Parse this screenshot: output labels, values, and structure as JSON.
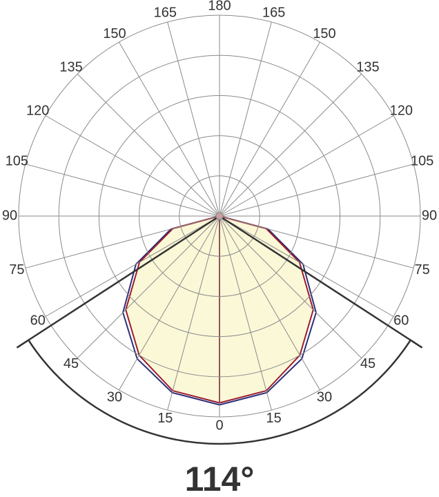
{
  "chart_data": {
    "type": "polar",
    "angle_ticks": [
      0,
      15,
      30,
      45,
      60,
      75,
      90,
      105,
      120,
      135,
      150,
      165,
      180
    ],
    "rlim": [
      0,
      100
    ],
    "rticks": [
      20,
      40,
      60,
      80,
      100
    ],
    "grid": true,
    "angles": [
      0,
      15,
      30,
      45,
      60,
      75,
      90
    ],
    "series": [
      {
        "color": "#2a2f7a",
        "values": [
          94,
          91,
          82,
          68,
          48,
          25,
          0
        ]
      },
      {
        "color": "#9b1c2c",
        "fill": "#fbf8d8",
        "values": [
          93,
          90,
          80,
          66,
          46,
          24,
          0
        ]
      }
    ],
    "beam_angle": {
      "value": 114,
      "label": "114°"
    }
  }
}
